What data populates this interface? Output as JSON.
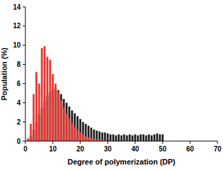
{
  "chart_data": {
    "type": "bar",
    "x_label": "Degree of polymerization (DP)",
    "y_label": "Population (%)",
    "xlim": [
      0,
      70
    ],
    "xticks": [
      0,
      10,
      20,
      30,
      40,
      50,
      60,
      70
    ],
    "ylim": [
      0,
      14
    ],
    "yticks": [
      0,
      2,
      4,
      6,
      8,
      10,
      12,
      14
    ],
    "grid": false,
    "series": [
      {
        "color": "#1a1a1a",
        "x": [
          1,
          2,
          3,
          4,
          5,
          6,
          7,
          8,
          9,
          10,
          11,
          12,
          13,
          14,
          15,
          16,
          17,
          18,
          19,
          20,
          21,
          22,
          23,
          24,
          25,
          26,
          27,
          28,
          29,
          30,
          31,
          32,
          33,
          34,
          35,
          36,
          37,
          38,
          39,
          40,
          41,
          42,
          43,
          44,
          45,
          46,
          47,
          48,
          49,
          50
        ],
        "values": [
          0.1,
          0.5,
          1.2,
          2.0,
          2.8,
          3.5,
          4.2,
          4.7,
          5.1,
          5.4,
          5.5,
          5.3,
          4.9,
          4.4,
          4.0,
          3.6,
          3.2,
          2.9,
          2.6,
          2.3,
          2.0,
          1.8,
          1.6,
          1.4,
          1.2,
          1.1,
          1.0,
          0.9,
          0.9,
          0.8,
          0.7,
          0.7,
          0.6,
          0.7,
          0.6,
          0.7,
          0.6,
          0.7,
          0.6,
          0.7,
          0.6,
          0.7,
          0.7,
          0.6,
          0.7,
          0.6,
          0.7,
          0.8,
          0.7,
          0.7
        ]
      },
      {
        "color": "#e8302a",
        "x": [
          1,
          2,
          3,
          4,
          5,
          6,
          7,
          8,
          9,
          10,
          11,
          12,
          13,
          14,
          15,
          16,
          17,
          18,
          19,
          20,
          21,
          22,
          23,
          24,
          25,
          26,
          27,
          28,
          29,
          30
        ],
        "values": [
          0.3,
          1.8,
          4.9,
          7.2,
          6.0,
          9.7,
          9.9,
          8.8,
          8.5,
          7.0,
          6.0,
          5.1,
          4.2,
          3.5,
          2.9,
          2.4,
          1.9,
          1.5,
          1.2,
          0.9,
          0.7,
          0.5,
          0.4,
          0.3,
          0.25,
          0.2,
          0.15,
          0.1,
          0.08,
          0.05
        ]
      }
    ]
  }
}
